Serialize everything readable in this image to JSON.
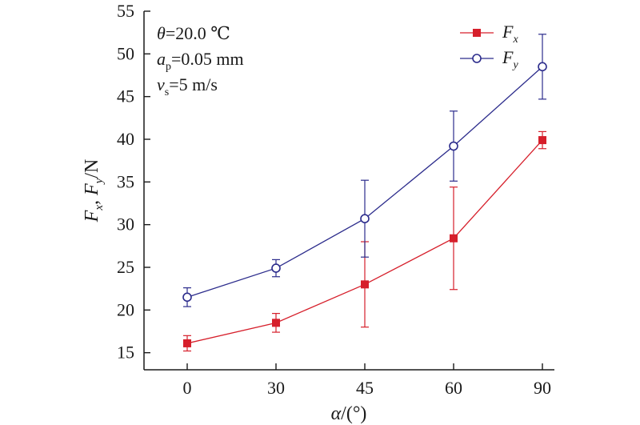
{
  "chart_data": {
    "type": "line",
    "x_categories": [
      "0",
      "30",
      "45",
      "60",
      "90"
    ],
    "xlabel": "α/(°)",
    "ylabel": "Fx, Fy/N",
    "ylim": [
      13,
      55
    ],
    "y_ticks": [
      15,
      20,
      25,
      30,
      35,
      40,
      45,
      50,
      55
    ],
    "grid": false,
    "legend_position": "top-right",
    "annotations": [
      {
        "text": "θ=20.0 ℃"
      },
      {
        "text": "ap=0.05 mm"
      },
      {
        "text": "vs=5 m/s"
      }
    ],
    "series": [
      {
        "name": "Fx",
        "color": "#d61f2b",
        "marker": "filled-square",
        "values": [
          16.1,
          18.5,
          23.0,
          28.4,
          39.9
        ],
        "error": [
          0.9,
          1.1,
          5.0,
          6.0,
          1.0
        ]
      },
      {
        "name": "Fy",
        "color": "#2c2c8c",
        "marker": "open-circle",
        "values": [
          21.5,
          24.9,
          30.7,
          39.2,
          48.5
        ],
        "error": [
          1.1,
          1.0,
          4.5,
          4.1,
          3.8
        ]
      }
    ]
  }
}
